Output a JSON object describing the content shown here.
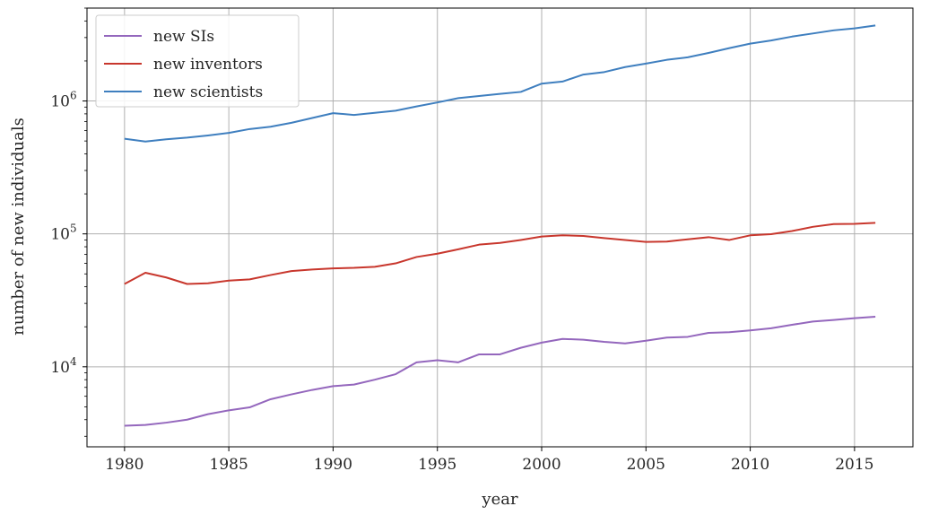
{
  "chart_data": {
    "type": "line",
    "xlabel": "year",
    "ylabel": "number of new individuals",
    "yscale": "log",
    "xlim": [
      1978.2,
      2017.8
    ],
    "ylim": [
      2500,
      5000000
    ],
    "grid": true,
    "legend_position": "top-left",
    "xticks": [
      1980,
      1985,
      1990,
      1995,
      2000,
      2005,
      2010,
      2015
    ],
    "yticks": [
      {
        "value": 10000,
        "base": "10",
        "exp": "4"
      },
      {
        "value": 100000,
        "base": "10",
        "exp": "5"
      },
      {
        "value": 1000000,
        "base": "10",
        "exp": "6"
      }
    ],
    "x": [
      1980,
      1981,
      1982,
      1983,
      1984,
      1985,
      1986,
      1987,
      1988,
      1989,
      1990,
      1991,
      1992,
      1993,
      1994,
      1995,
      1996,
      1997,
      1998,
      1999,
      2000,
      2001,
      2002,
      2003,
      2004,
      2005,
      2006,
      2007,
      2008,
      2009,
      2010,
      2011,
      2012,
      2013,
      2014,
      2015,
      2016
    ],
    "series": [
      {
        "name": "new SIs",
        "color": "#9467bd",
        "values": [
          3600,
          3650,
          3800,
          4000,
          4400,
          4700,
          4950,
          5700,
          6200,
          6700,
          7150,
          7350,
          8000,
          8800,
          10800,
          11200,
          10800,
          12400,
          12400,
          13900,
          15200,
          16200,
          16000,
          15400,
          15000,
          15700,
          16600,
          16800,
          18000,
          18200,
          18800,
          19500,
          20700,
          21900,
          22500,
          23200,
          23800
        ]
      },
      {
        "name": "new inventors",
        "color": "#c8372d",
        "values": [
          42000,
          51000,
          47000,
          42000,
          42500,
          44500,
          45500,
          49000,
          52500,
          54000,
          55000,
          55500,
          56500,
          60000,
          67000,
          71000,
          76500,
          83000,
          85500,
          90000,
          95500,
          97500,
          96500,
          93000,
          90000,
          87000,
          87500,
          91000,
          94500,
          90000,
          97500,
          99500,
          105000,
          113000,
          118500,
          119000,
          121000
        ]
      },
      {
        "name": "new scientists",
        "color": "#3f7fbf",
        "values": [
          520000,
          495000,
          515000,
          530000,
          550000,
          575000,
          615000,
          640000,
          685000,
          745000,
          810000,
          785000,
          815000,
          845000,
          910000,
          975000,
          1050000,
          1090000,
          1130000,
          1170000,
          1350000,
          1400000,
          1580000,
          1650000,
          1800000,
          1910000,
          2040000,
          2130000,
          2300000,
          2500000,
          2700000,
          2850000,
          3050000,
          3220000,
          3400000,
          3520000,
          3700000
        ]
      }
    ]
  }
}
